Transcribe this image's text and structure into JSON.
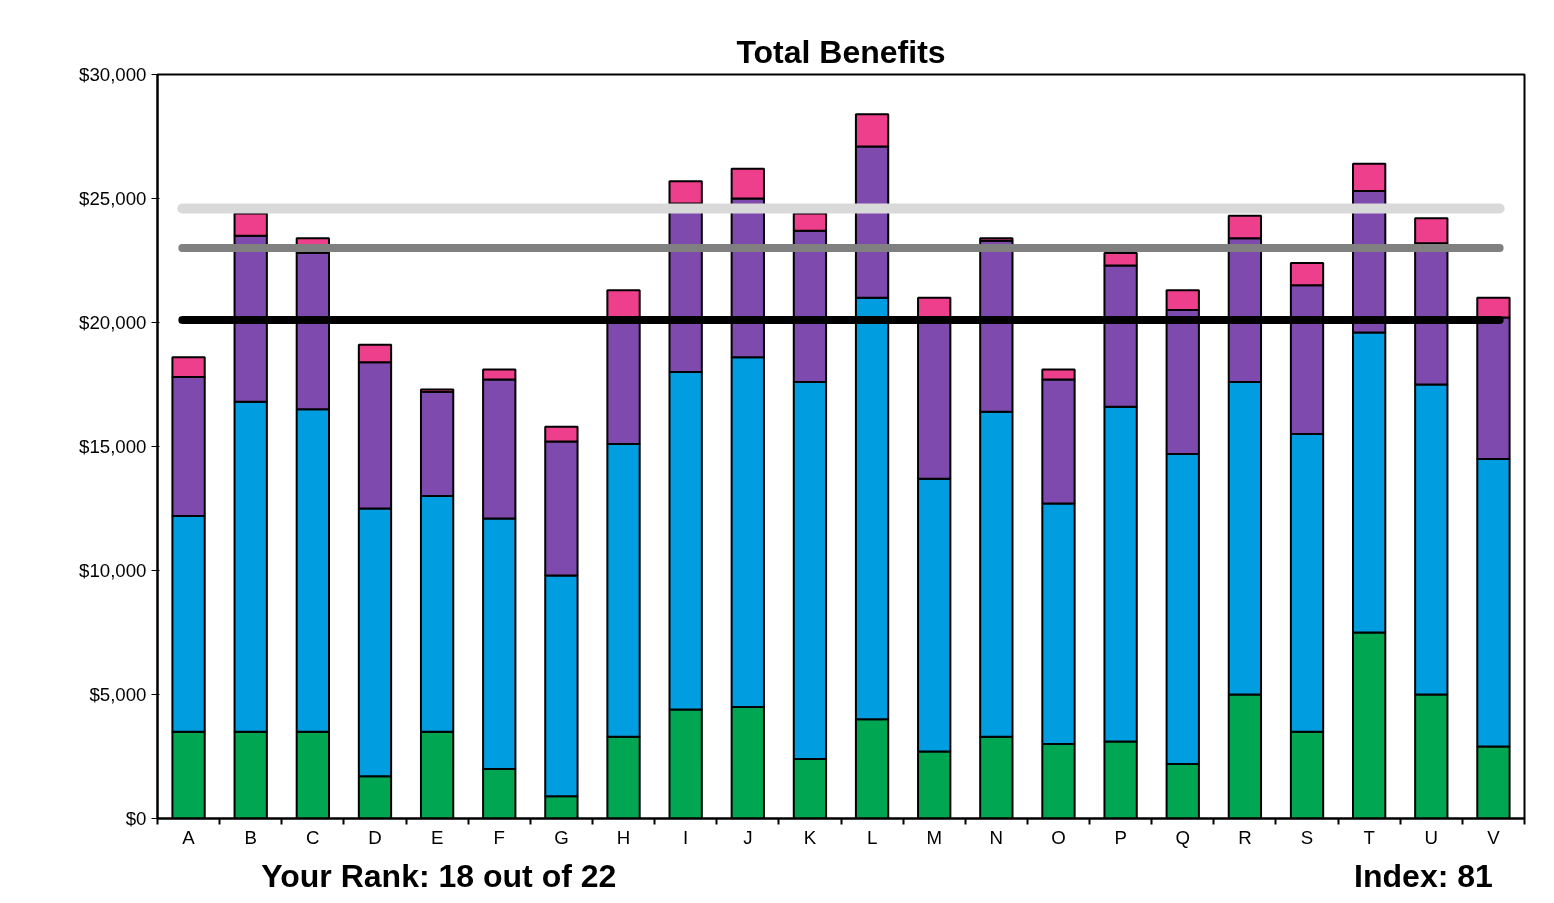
{
  "chart_data": {
    "type": "bar",
    "stacked": true,
    "title": "Total Benefits",
    "categories": [
      "A",
      "B",
      "C",
      "D",
      "E",
      "F",
      "G",
      "H",
      "I",
      "J",
      "K",
      "L",
      "M",
      "N",
      "O",
      "P",
      "Q",
      "R",
      "S",
      "T",
      "U",
      "V"
    ],
    "series": [
      {
        "color": "#00a651",
        "values": [
          3500,
          3500,
          3500,
          1700,
          3500,
          2000,
          900,
          3300,
          4400,
          4500,
          2400,
          4000,
          2700,
          3300,
          3000,
          3100,
          2200,
          5000,
          3500,
          7500,
          5000,
          2900
        ]
      },
      {
        "color": "#009ee0",
        "values": [
          8700,
          13300,
          13000,
          10800,
          9500,
          10100,
          8900,
          11800,
          13600,
          14100,
          15200,
          17000,
          11000,
          13100,
          9700,
          13500,
          12500,
          12600,
          12000,
          12100,
          12500,
          11600
        ]
      },
      {
        "color": "#7f4aad",
        "values": [
          5600,
          6700,
          6300,
          5900,
          4200,
          5600,
          5400,
          5000,
          6800,
          6400,
          6100,
          6100,
          6400,
          6900,
          5000,
          5700,
          5800,
          5800,
          6000,
          5700,
          5700,
          5700
        ]
      },
      {
        "color": "#ee3f8c",
        "values": [
          800,
          900,
          600,
          700,
          100,
          400,
          600,
          1200,
          900,
          1200,
          700,
          1300,
          900,
          100,
          400,
          500,
          800,
          900,
          900,
          1100,
          1000,
          800
        ]
      }
    ],
    "ylim": [
      0,
      30000
    ],
    "yticks": [
      {
        "value": 0,
        "label": "$0"
      },
      {
        "value": 5000,
        "label": "$5,000"
      },
      {
        "value": 10000,
        "label": "$10,000"
      },
      {
        "value": 15000,
        "label": "$15,000"
      },
      {
        "value": 20000,
        "label": "$20,000"
      },
      {
        "value": 25000,
        "label": "$25,000"
      },
      {
        "value": 30000,
        "label": "$30,000"
      }
    ],
    "grid": false,
    "ref_lines": [
      {
        "axis": "y",
        "value": 24600,
        "color": "#d9d9d9"
      },
      {
        "axis": "y",
        "value": 23000,
        "color": "#808080"
      },
      {
        "axis": "y",
        "value": 20100,
        "color": "#000000"
      }
    ],
    "annotations": [
      "Your Rank: 18 out of 22",
      "Index: 81"
    ]
  }
}
